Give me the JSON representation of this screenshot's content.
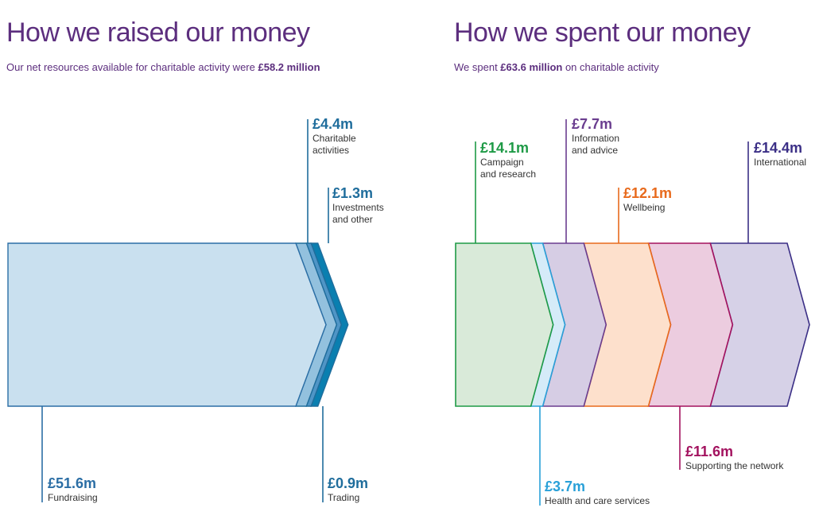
{
  "left": {
    "title": "How we raised our money",
    "subtitle_prefix": "Our net resources available for charitable activity were ",
    "subtitle_bold": "£58.2 million"
  },
  "right": {
    "title": "How we spent our money",
    "subtitle_prefix": "We spent ",
    "subtitle_bold": "£63.6 million",
    "subtitle_suffix": " on charitable activity"
  },
  "chart_data": [
    {
      "type": "bar",
      "title": "How we raised our money",
      "unit": "£m",
      "categories": [
        "Fundraising",
        "Charitable activities",
        "Trading",
        "Investments and other"
      ],
      "values": [
        51.6,
        4.4,
        0.9,
        1.3
      ],
      "series": [
        {
          "amount": "£51.6m",
          "label": [
            "Fundraising"
          ],
          "value": 51.6,
          "color": "#2b6ea5",
          "fill": "#c9e0ef"
        },
        {
          "amount": "£4.4m",
          "label": [
            "Charitable",
            "activities"
          ],
          "value": 4.4,
          "color": "#1f6d9c",
          "fill": "#93c1de"
        },
        {
          "amount": "£0.9m",
          "label": [
            "Trading"
          ],
          "value": 0.9,
          "color": "#1f6d9c",
          "fill": "#4f95c6"
        },
        {
          "amount": "£1.3m",
          "label": [
            "Investments",
            "and other"
          ],
          "value": 1.3,
          "color": "#1f6d9c",
          "fill": "#0a7fb0"
        }
      ]
    },
    {
      "type": "bar",
      "title": "How we spent our money",
      "unit": "£m",
      "categories": [
        "Campaign and research",
        "Health and care services",
        "Information and advice",
        "Wellbeing",
        "Supporting the network",
        "International"
      ],
      "values": [
        14.1,
        3.7,
        7.7,
        12.1,
        11.6,
        14.4
      ],
      "series": [
        {
          "amount": "£14.1m",
          "label": [
            "Campaign",
            "and research"
          ],
          "value": 14.1,
          "color": "#1e9a46",
          "fill": "#d9ead9"
        },
        {
          "amount": "£3.7m",
          "label": [
            "Health and care services"
          ],
          "value": 3.7,
          "color": "#29a0d8",
          "fill": "#d5ebf8"
        },
        {
          "amount": "£7.7m",
          "label": [
            "Information",
            "and advice"
          ],
          "value": 7.7,
          "color": "#6a3d8f",
          "fill": "#d6cde4"
        },
        {
          "amount": "£12.1m",
          "label": [
            "Wellbeing"
          ],
          "value": 12.1,
          "color": "#e86a1c",
          "fill": "#fde0cc"
        },
        {
          "amount": "£11.6m",
          "label": [
            "Supporting the network"
          ],
          "value": 11.6,
          "color": "#a3125f",
          "fill": "#ecccdf"
        },
        {
          "amount": "£14.4m",
          "label": [
            "International"
          ],
          "value": 14.4,
          "color": "#3b2f86",
          "fill": "#d6d1e7"
        }
      ]
    }
  ]
}
